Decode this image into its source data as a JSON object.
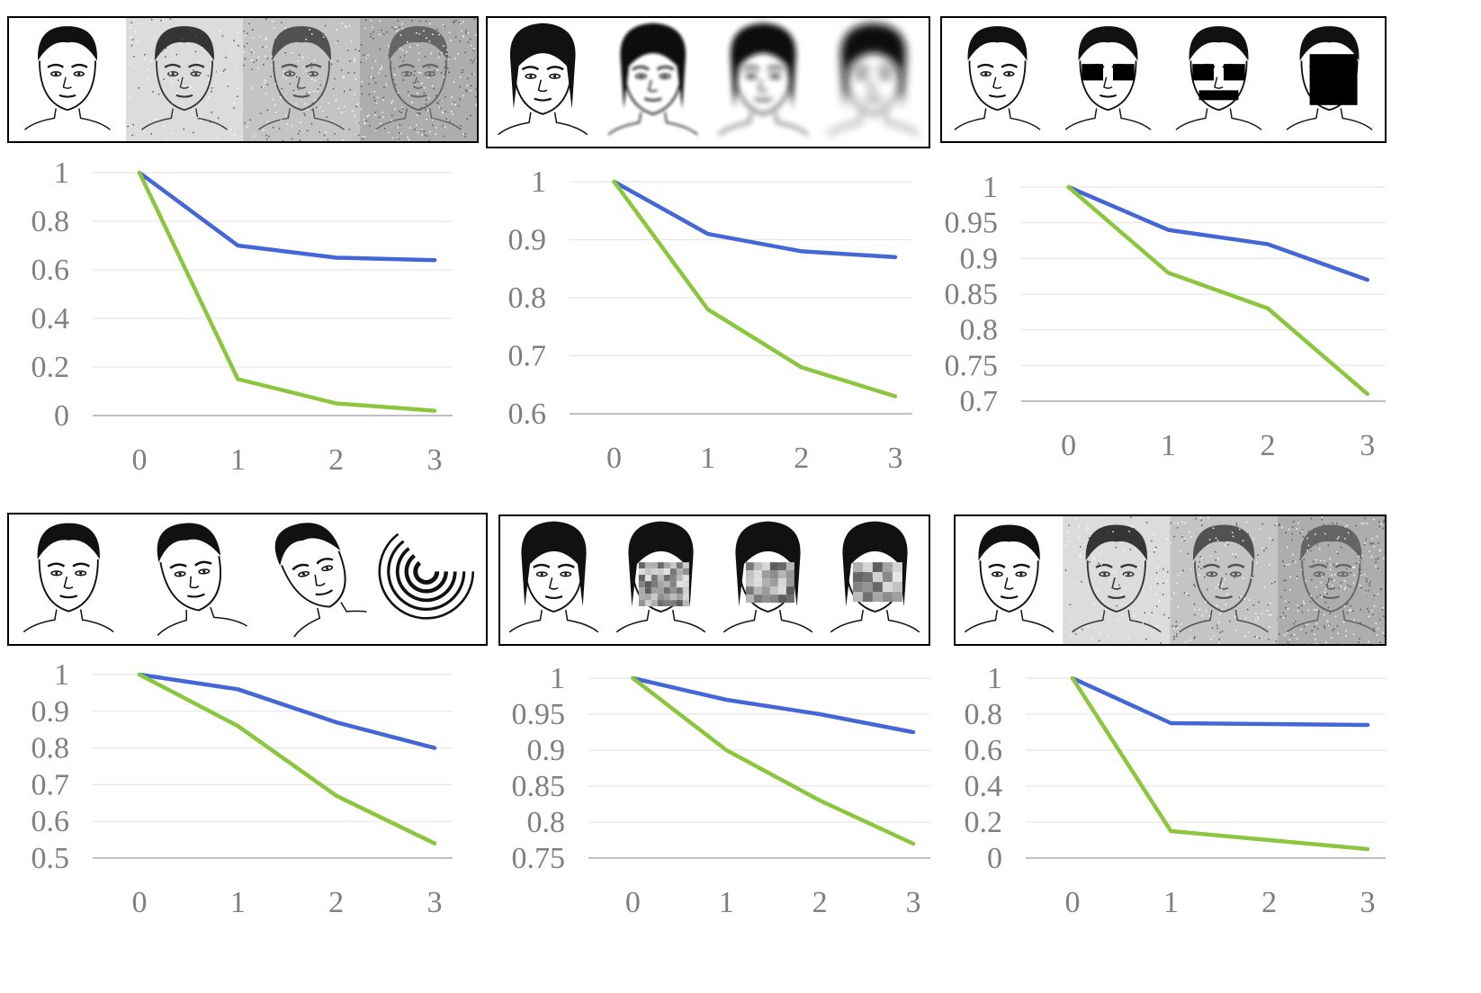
{
  "colors": {
    "series_a": "#4466d6",
    "series_b": "#8cc63f",
    "grid": "#e6e6e6",
    "axis": "#bfbfbf",
    "tick_text": "#7f7f7f",
    "strip_border": "#000000"
  },
  "panels": [
    {
      "strip": {
        "images": [
          "sketch-face-original",
          "sketch-face-noise-1",
          "sketch-face-noise-2",
          "sketch-face-noise-3"
        ],
        "effect": "gaussian-noise"
      },
      "chart_data": {
        "type": "line",
        "x": [
          0,
          1,
          2,
          3
        ],
        "ylim": [
          0,
          1
        ],
        "yticks": [
          "0",
          "0.2",
          "0.4",
          "0.6",
          "0.8",
          "1"
        ],
        "xticks": [
          "0",
          "1",
          "2",
          "3"
        ],
        "grid": true,
        "series": [
          {
            "color": "#4466d6",
            "values": [
              1,
              0.7,
              0.65,
              0.64
            ]
          },
          {
            "color": "#8cc63f",
            "values": [
              1,
              0.15,
              0.05,
              0.02
            ]
          }
        ]
      }
    },
    {
      "strip": {
        "images": [
          "sketch-face-original",
          "sketch-face-blur-1",
          "sketch-face-blur-2",
          "sketch-face-blur-3"
        ],
        "effect": "blur"
      },
      "chart_data": {
        "type": "line",
        "x": [
          0,
          1,
          2,
          3
        ],
        "ylim": [
          0.6,
          1
        ],
        "yticks": [
          "0.6",
          "0.7",
          "0.8",
          "0.9",
          "1"
        ],
        "xticks": [
          "0",
          "1",
          "2",
          "3"
        ],
        "grid": true,
        "series": [
          {
            "color": "#4466d6",
            "values": [
              1,
              0.91,
              0.88,
              0.87
            ]
          },
          {
            "color": "#8cc63f",
            "values": [
              1,
              0.78,
              0.68,
              0.63
            ]
          }
        ]
      }
    },
    {
      "strip": {
        "images": [
          "sketch-face-original",
          "sketch-face-occlusion-eyes",
          "sketch-face-occlusion-eyes-mouth",
          "sketch-face-occlusion-large"
        ],
        "effect": "occlusion"
      },
      "chart_data": {
        "type": "line",
        "x": [
          0,
          1,
          2,
          3
        ],
        "ylim": [
          0.7,
          1
        ],
        "yticks": [
          "0.7",
          "0.75",
          "0.8",
          "0.85",
          "0.9",
          "0.95",
          "1"
        ],
        "xticks": [
          "0",
          "1",
          "2",
          "3"
        ],
        "grid": true,
        "series": [
          {
            "color": "#4466d6",
            "values": [
              1,
              0.94,
              0.92,
              0.87
            ]
          },
          {
            "color": "#8cc63f",
            "values": [
              1,
              0.88,
              0.83,
              0.71
            ]
          }
        ]
      }
    },
    {
      "strip": {
        "images": [
          "sketch-face-original",
          "sketch-face-warp-1",
          "sketch-face-warp-2",
          "sketch-face-swirl"
        ],
        "effect": "warp"
      },
      "chart_data": {
        "type": "line",
        "x": [
          0,
          1,
          2,
          3
        ],
        "ylim": [
          0.5,
          1
        ],
        "yticks": [
          "0.5",
          "0.6",
          "0.7",
          "0.8",
          "0.9",
          "1"
        ],
        "xticks": [
          "0",
          "1",
          "2",
          "3"
        ],
        "grid": true,
        "series": [
          {
            "color": "#4466d6",
            "values": [
              1,
              0.96,
              0.87,
              0.8
            ]
          },
          {
            "color": "#8cc63f",
            "values": [
              1,
              0.86,
              0.67,
              0.54
            ]
          }
        ]
      }
    },
    {
      "strip": {
        "images": [
          "sketch-face-original",
          "sketch-face-pixelate-1",
          "sketch-face-pixelate-2",
          "sketch-face-pixelate-3"
        ],
        "effect": "pixelate"
      },
      "chart_data": {
        "type": "line",
        "x": [
          0,
          1,
          2,
          3
        ],
        "ylim": [
          0.75,
          1
        ],
        "yticks": [
          "0.75",
          "0.8",
          "0.85",
          "0.9",
          "0.95",
          "1"
        ],
        "xticks": [
          "0",
          "1",
          "2",
          "3"
        ],
        "grid": true,
        "series": [
          {
            "color": "#4466d6",
            "values": [
              1,
              0.97,
              0.95,
              0.925
            ]
          },
          {
            "color": "#8cc63f",
            "values": [
              1,
              0.9,
              0.83,
              0.77
            ]
          }
        ]
      }
    },
    {
      "strip": {
        "images": [
          "sketch-face-original",
          "sketch-face-noise-1",
          "sketch-face-noise-2",
          "sketch-face-noise-3"
        ],
        "effect": "gaussian-noise"
      },
      "chart_data": {
        "type": "line",
        "x": [
          0,
          1,
          2,
          3
        ],
        "ylim": [
          0,
          1
        ],
        "yticks": [
          "0",
          "0.2",
          "0.4",
          "0.6",
          "0.8",
          "1"
        ],
        "xticks": [
          "0",
          "1",
          "2",
          "3"
        ],
        "grid": true,
        "series": [
          {
            "color": "#4466d6",
            "values": [
              1,
              0.75,
              0.745,
              0.74
            ]
          },
          {
            "color": "#8cc63f",
            "values": [
              1,
              0.15,
              0.1,
              0.05
            ]
          }
        ]
      }
    }
  ]
}
